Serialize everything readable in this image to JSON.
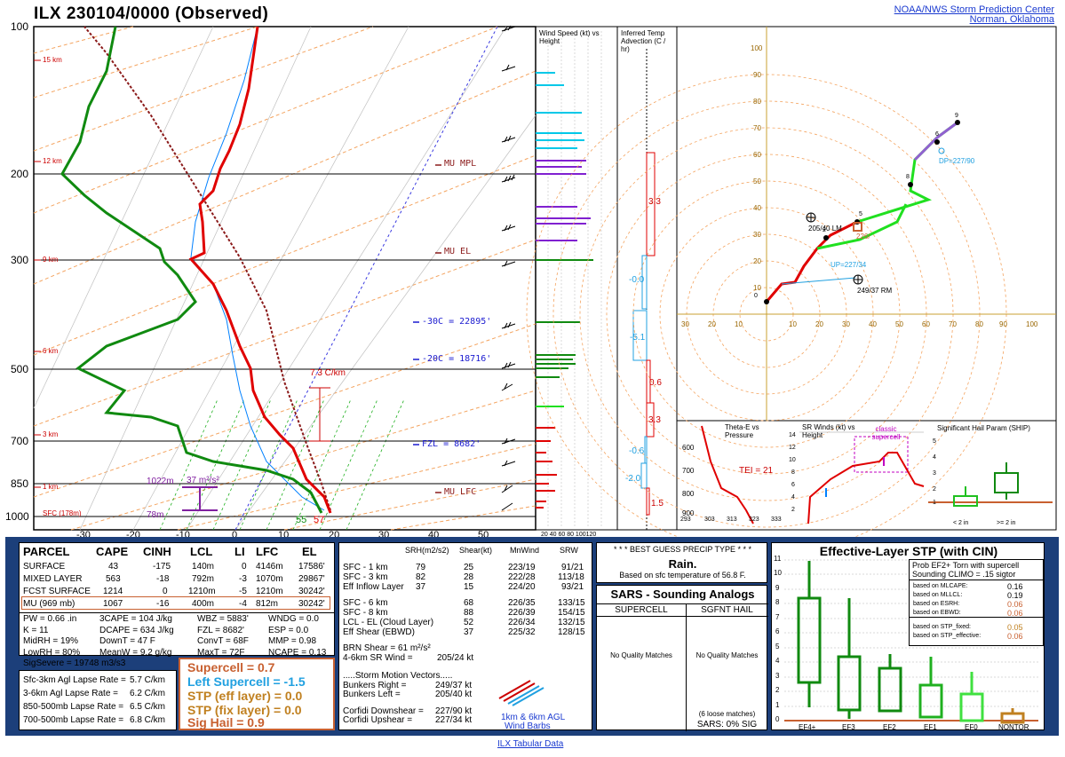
{
  "header": {
    "title": "ILX   230104/0000  (Observed)",
    "org_line1": "NOAA/NWS Storm Prediction Center",
    "org_line2": "Norman, Oklahoma"
  },
  "skewt": {
    "pressure_ticks": [
      "100",
      "200",
      "300",
      "500",
      "700",
      "850",
      "1000"
    ],
    "temp_ticks": [
      "-30",
      "-20",
      "-10",
      "0",
      "10",
      "20",
      "30",
      "40",
      "50"
    ],
    "height_labels": [
      "15 km",
      "12 km",
      "9 km",
      "6 km",
      "3 km",
      "1 km",
      "SFC (178m)"
    ],
    "annotations": {
      "mu_mpl": "MU MPL",
      "mu_el": "MU EL",
      "m30c": "-30C = 22895'",
      "m20c": "-20C = 18716'",
      "fzl": "FZL = 8682'",
      "mu_lfc": "MU LFC",
      "lapse": "7.3 C/km",
      "dcape_height": "1022m",
      "srh": "37 m²/s²",
      "bottom_height": "78m",
      "sfc_td": "55",
      "sfc_t": "57"
    }
  },
  "wind_profile": {
    "title": "Wind Speed (kt) vs Height",
    "xticks": "20 40 60 80 100120"
  },
  "temp_adv": {
    "title": "Inferred Temp Advection (C / hr)",
    "values": [
      "3.3",
      "-0.0",
      "-5.1",
      "0.6",
      "3.3",
      "-0.6",
      "-2.0",
      "1.5"
    ]
  },
  "hodograph": {
    "yticks": [
      "100",
      "90",
      "80",
      "70",
      "60",
      "50",
      "40",
      "30",
      "20",
      "10"
    ],
    "xticks": [
      "30",
      "20",
      "10",
      "10",
      "20",
      "30",
      "40",
      "50",
      "60",
      "70",
      "80",
      "90",
      "100"
    ],
    "labels": {
      "lm": "205/40 LM",
      "rm": "249/37 RM",
      "dp": "DP=227/90",
      "up": "UP=227/34",
      "mean": "226/"
    },
    "point_numbers": [
      "0",
      "1",
      "2",
      "3",
      "4",
      "5",
      "6",
      "7",
      "8",
      "9"
    ]
  },
  "theta_panel": {
    "title": "Theta-E vs Pressure",
    "tei": "TEI = 21",
    "yticks": [
      "600",
      "700",
      "800",
      "900"
    ],
    "xticks": [
      "293",
      "303",
      "313",
      "323",
      "333"
    ]
  },
  "sr_panel": {
    "title": "SR Winds (kt) vs Height",
    "label": "classic supercell",
    "yticks": [
      "14",
      "12",
      "10",
      "8",
      "6",
      "4",
      "2"
    ]
  },
  "ship_panel": {
    "title": "Significant Hail Param (SHIP)",
    "yticks": [
      "5",
      "4",
      "3",
      "2",
      "1"
    ],
    "xlabels": [
      "< 2 in",
      ">= 2 in"
    ]
  },
  "parcels": {
    "headers": [
      "PARCEL",
      "CAPE",
      "CINH",
      "LCL",
      "LI",
      "LFC",
      "EL"
    ],
    "rows": [
      [
        "SURFACE",
        "43",
        "-175",
        "140m",
        "0",
        "4146m",
        "17586'"
      ],
      [
        "MIXED LAYER",
        "563",
        "-18",
        "792m",
        "-3",
        "1070m",
        "29867'"
      ],
      [
        "FCST SURFACE",
        "1214",
        "0",
        "1210m",
        "-5",
        "1210m",
        "30242'"
      ],
      [
        "MU  (969 mb)",
        "1067",
        "-16",
        "400m",
        "-4",
        "812m",
        "30242'"
      ]
    ]
  },
  "thermo": {
    "col1": [
      "PW = 0.66 .in",
      "K = 11",
      "MidRH = 19%",
      "LowRH = 80%",
      "SigSevere = 19748 m3/s3"
    ],
    "col2": [
      "3CAPE = 104 J/kg",
      "DCAPE = 634 J/kg",
      "DownT = 47 F",
      "MeanW = 9.2 g/kg"
    ],
    "col3": [
      "WBZ = 5883'",
      "FZL = 8682'",
      "ConvT = 68F",
      "MaxT = 72F"
    ],
    "col4": [
      "WNDG = 0.0",
      "ESP = 0.0",
      "MMP = 0.98",
      "NCAPE = 0.13"
    ]
  },
  "lapse": {
    "labels": [
      "Sfc-3km Agl Lapse Rate =",
      "3-6km Agl Lapse Rate =",
      "850-500mb Lapse Rate =",
      "700-500mb Lapse Rate ="
    ],
    "values": [
      "5.7 C/km",
      "6.2 C/km",
      "6.5 C/km",
      "6.8 C/km"
    ]
  },
  "composites": {
    "supercell": "Supercell = 0.7",
    "left_supercell": "Left Supercell = -1.5",
    "stp_eff": "STP (eff layer) = 0.0",
    "stp_fix": "STP (fix layer) = 0.0",
    "sig_hail": "Sig Hail = 0.9"
  },
  "kinematics": {
    "headers": [
      "SRH(m2/s2)",
      "Shear(kt)",
      "MnWind",
      "SRW"
    ],
    "rows": [
      [
        "SFC - 1 km",
        "79",
        "25",
        "223/19",
        "91/21"
      ],
      [
        "SFC - 3 km",
        "82",
        "28",
        "222/28",
        "113/18"
      ],
      [
        "Eff Inflow Layer",
        "37",
        "15",
        "224/20",
        "93/21"
      ],
      [
        "SFC - 6 km",
        "68",
        "226/35",
        "133/15"
      ],
      [
        "SFC - 8 km",
        "88",
        "226/39",
        "154/15"
      ],
      [
        "LCL - EL (Cloud Layer)",
        "52",
        "226/34",
        "132/15"
      ],
      [
        "Eff Shear (EBWD)",
        "37",
        "225/32",
        "128/15"
      ]
    ],
    "brn": "BRN Shear =   61 m²/s²",
    "sr_wind_label": "4-6km SR Wind =",
    "sr_wind_value": "205/24 kt",
    "motion_title": ".....Storm Motion Vectors.....",
    "bunkers_right_label": "Bunkers Right =",
    "bunkers_right_value": "249/37 kt",
    "bunkers_left_label": "Bunkers Left =",
    "bunkers_left_value": "205/40 kt",
    "corfidi_down_label": "Corfidi Downshear =",
    "corfidi_down_value": "227/90 kt",
    "corfidi_up_label": "Corfidi Upshear =",
    "corfidi_up_value": "227/34 kt",
    "barb_caption_1": "1km & 6km AGL",
    "barb_caption_2": "Wind Barbs"
  },
  "precip": {
    "title": "* * * BEST GUESS PRECIP TYPE * * *",
    "type": "Rain.",
    "note": "Based on sfc temperature of 56.8 F."
  },
  "sars": {
    "title": "SARS - Sounding Analogs",
    "supercell": "SUPERCELL",
    "sgfnt_hail": "SGFNT HAIL",
    "no_match": "No Quality Matches",
    "loose": "(6 loose matches)",
    "sig": "SARS:  0% SIG"
  },
  "stp_panel": {
    "title": "Effective-Layer STP (with CIN)",
    "prob_title_1": "Prob EF2+ Torn with supercell",
    "prob_title_2": "Sounding CLIMO = .15 sigtor",
    "prob_rows": [
      [
        "based on MLCAPE:",
        "0.16"
      ],
      [
        "based on MLLCL:",
        "0.19"
      ],
      [
        "based on ESRH:",
        "0.06"
      ],
      [
        "based on EBWD:",
        "0.06"
      ],
      [
        "based on STP_fixed:",
        "0.05"
      ],
      [
        "based on STP_effective:",
        "0.06"
      ]
    ],
    "yticks": [
      "11",
      "10",
      "9",
      "8",
      "7",
      "6",
      "5",
      "4",
      "3",
      "2",
      "1",
      "0"
    ],
    "categories": [
      "EF4+",
      "EF3",
      "EF2",
      "EF1",
      "EF0",
      "NONTOR"
    ]
  },
  "footer": {
    "link": "ILX Tabular Data"
  },
  "colors": {
    "temp": "#e00000",
    "dew": "#008800",
    "wetbulb": "#0080ff",
    "parcel": "#8b1a1a",
    "dry": "#f0a050",
    "mix": "#3a3ae0"
  }
}
